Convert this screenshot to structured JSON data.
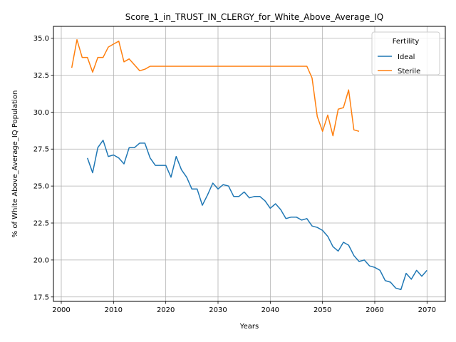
{
  "chart_data": {
    "type": "line",
    "title": "Score_1_in_TRUST_IN_CLERGY_for_White_Above_Average_IQ",
    "xlabel": "Years",
    "ylabel": "% of White Above_Average_IQ Population",
    "xlim": [
      1998.5,
      2073.5
    ],
    "ylim": [
      17.2,
      35.8
    ],
    "xticks": [
      2000,
      2010,
      2020,
      2030,
      2040,
      2050,
      2060,
      2070
    ],
    "yticks": [
      17.5,
      20.0,
      22.5,
      25.0,
      27.5,
      30.0,
      32.5,
      35.0
    ],
    "ytick_labels": [
      "17.5",
      "20.0",
      "22.5",
      "25.0",
      "27.5",
      "30.0",
      "32.5",
      "35.0"
    ],
    "grid": true,
    "legend": {
      "title": "Fertility",
      "position": "top-right"
    },
    "series": [
      {
        "name": "Ideal",
        "color": "#1f77b4",
        "x": [
          2005,
          2006,
          2007,
          2008,
          2009,
          2010,
          2011,
          2012,
          2013,
          2014,
          2015,
          2016,
          2017,
          2018,
          2019,
          2020,
          2021,
          2022,
          2023,
          2024,
          2025,
          2026,
          2027,
          2028,
          2029,
          2030,
          2031,
          2032,
          2033,
          2034,
          2035,
          2036,
          2037,
          2038,
          2039,
          2040,
          2041,
          2042,
          2043,
          2044,
          2045,
          2046,
          2047,
          2048,
          2049,
          2050,
          2051,
          2052,
          2053,
          2054,
          2055,
          2056,
          2057,
          2058,
          2059,
          2060,
          2061,
          2062,
          2063,
          2064,
          2065,
          2066,
          2067,
          2068,
          2069,
          2070
        ],
        "y": [
          26.9,
          25.9,
          27.6,
          28.1,
          27.0,
          27.1,
          26.9,
          26.5,
          27.6,
          27.6,
          27.9,
          27.9,
          26.9,
          26.4,
          26.4,
          26.4,
          25.6,
          27.0,
          26.1,
          25.6,
          24.8,
          24.8,
          23.7,
          24.4,
          25.2,
          24.8,
          25.1,
          25.0,
          24.3,
          24.3,
          24.6,
          24.2,
          24.3,
          24.3,
          24.0,
          23.5,
          23.8,
          23.4,
          22.8,
          22.9,
          22.9,
          22.7,
          22.8,
          22.3,
          22.2,
          22.0,
          21.6,
          20.9,
          20.6,
          21.2,
          21.0,
          20.3,
          19.9,
          20.0,
          19.6,
          19.5,
          19.3,
          18.6,
          18.5,
          18.1,
          18.0,
          19.1,
          18.7,
          19.3,
          18.9,
          19.3
        ]
      },
      {
        "name": "Sterile",
        "color": "#ff7f0e",
        "x": [
          2002,
          2003,
          2004,
          2005,
          2006,
          2007,
          2008,
          2009,
          2010,
          2011,
          2012,
          2013,
          2014,
          2015,
          2016,
          2017,
          2018,
          2019,
          2020,
          2021,
          2022,
          2023,
          2024,
          2025,
          2026,
          2027,
          2028,
          2029,
          2030,
          2031,
          2032,
          2033,
          2034,
          2035,
          2036,
          2037,
          2038,
          2039,
          2040,
          2041,
          2042,
          2043,
          2044,
          2045,
          2046,
          2047,
          2048,
          2049,
          2050,
          2051,
          2052,
          2053,
          2054,
          2055,
          2056,
          2057
        ],
        "y": [
          33.0,
          34.9,
          33.7,
          33.7,
          32.7,
          33.7,
          33.7,
          34.4,
          34.6,
          34.8,
          33.4,
          33.6,
          33.2,
          32.8,
          32.9,
          33.1,
          33.1,
          33.1,
          33.1,
          33.1,
          33.1,
          33.1,
          33.1,
          33.1,
          33.1,
          33.1,
          33.1,
          33.1,
          33.1,
          33.1,
          33.1,
          33.1,
          33.1,
          33.1,
          33.1,
          33.1,
          33.1,
          33.1,
          33.1,
          33.1,
          33.1,
          33.1,
          33.1,
          33.1,
          33.1,
          33.1,
          32.3,
          29.7,
          28.7,
          29.8,
          28.4,
          30.2,
          30.3,
          31.5,
          28.8,
          28.7
        ]
      }
    ]
  }
}
